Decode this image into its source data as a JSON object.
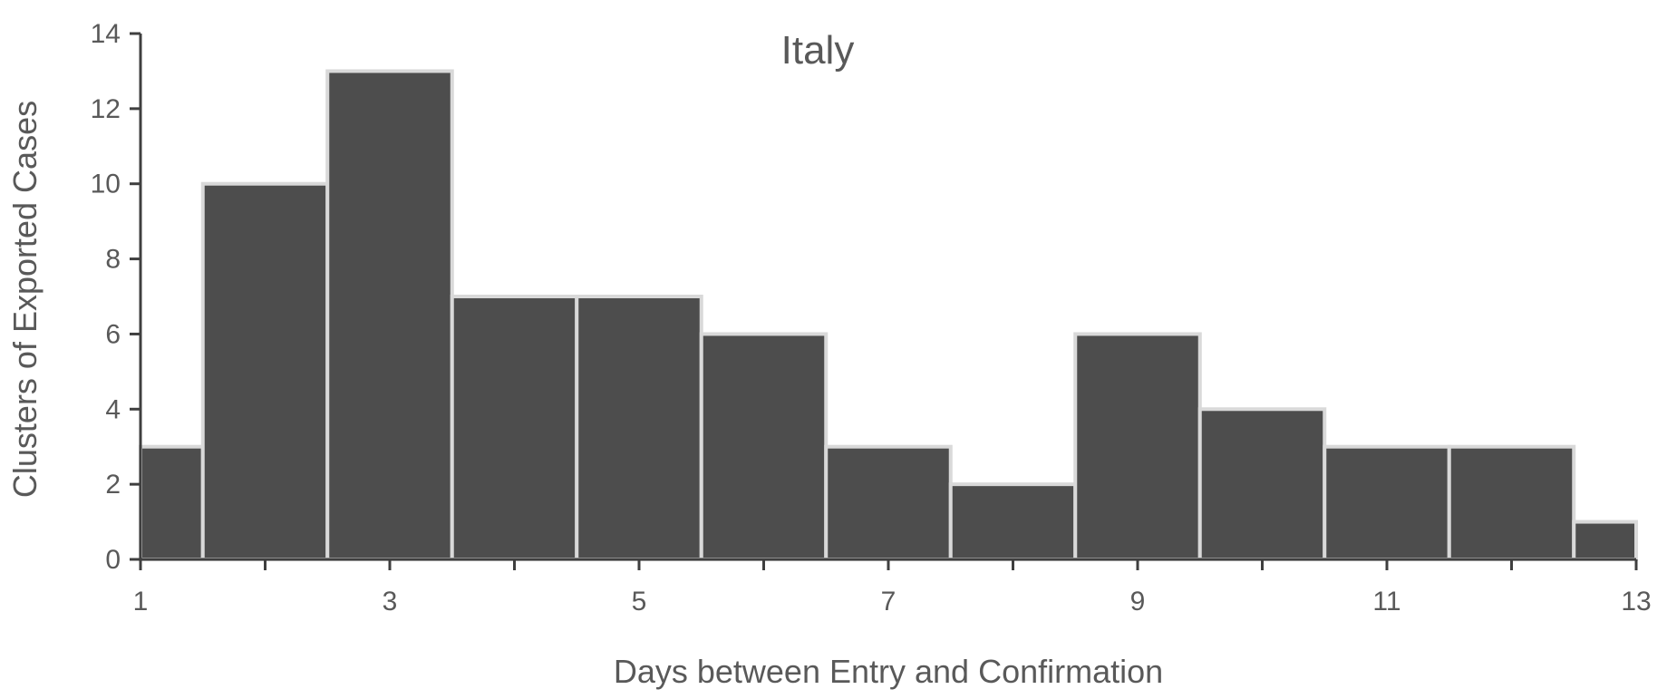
{
  "chart_data": {
    "type": "bar",
    "title": "Italy",
    "xlabel": "Days between Entry and Confirmation",
    "ylabel": "Clusters of Exported Cases",
    "x": [
      1,
      2,
      3,
      4,
      5,
      6,
      7,
      8,
      9,
      10,
      11,
      12,
      13
    ],
    "values": [
      3,
      10,
      13,
      7,
      7,
      6,
      3,
      2,
      6,
      4,
      3,
      3,
      1
    ],
    "xlim": [
      1,
      13
    ],
    "ylim": [
      0,
      14
    ],
    "x_ticks": [
      1,
      3,
      5,
      7,
      9,
      11,
      13
    ],
    "y_ticks": [
      0,
      2,
      4,
      6,
      8,
      10,
      12,
      14
    ],
    "grid": false,
    "legend": "none",
    "colors": {
      "bar_fill": "#4d4d4d",
      "bar_edge": "#d9d9d9",
      "axis": "#3f3f3f",
      "text": "#595959"
    }
  }
}
